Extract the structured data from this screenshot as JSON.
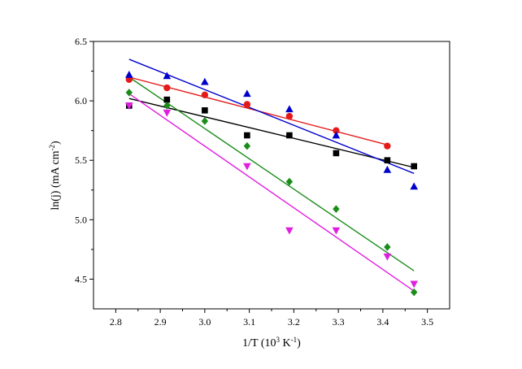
{
  "chart_data": {
    "type": "scatter",
    "xlabel_parts": [
      "1/T (10",
      "3",
      " K",
      "-1",
      ")"
    ],
    "ylabel_parts": [
      "ln(j) (mA cm",
      "-2",
      ")"
    ],
    "xlim": [
      2.75,
      3.55
    ],
    "ylim": [
      4.25,
      6.5
    ],
    "x_ticks": [
      "2.8",
      "2.9",
      "3.0",
      "3.1",
      "3.2",
      "3.3",
      "3.4",
      "3.5"
    ],
    "y_ticks": [
      "4.5",
      "5.0",
      "5.5",
      "6.0",
      "6.5"
    ],
    "series": [
      {
        "marker": "square",
        "color": "#000000",
        "x": [
          2.83,
          2.915,
          3.0,
          3.095,
          3.19,
          3.295,
          3.41,
          3.47
        ],
        "y": [
          5.96,
          6.01,
          5.92,
          5.71,
          5.71,
          5.56,
          5.5,
          5.45
        ],
        "fit": [
          [
            2.83,
            6.02
          ],
          [
            3.47,
            5.44
          ]
        ]
      },
      {
        "marker": "circle",
        "color": "#e41a1a",
        "x": [
          2.83,
          2.915,
          3.0,
          3.095,
          3.19,
          3.295,
          3.41
        ],
        "y": [
          6.18,
          6.11,
          6.05,
          5.97,
          5.87,
          5.75,
          5.62
        ],
        "fit": [
          [
            2.83,
            6.2
          ],
          [
            3.41,
            5.63
          ]
        ]
      },
      {
        "marker": "triangle-up",
        "color": "#0000cc",
        "x": [
          2.83,
          2.915,
          3.0,
          3.095,
          3.19,
          3.295,
          3.41,
          3.47
        ],
        "y": [
          6.22,
          6.21,
          6.16,
          6.06,
          5.93,
          5.71,
          5.42,
          5.28
        ],
        "fit": [
          [
            2.83,
            6.35
          ],
          [
            3.47,
            5.39
          ]
        ]
      },
      {
        "marker": "diamond",
        "color": "#1a8c1a",
        "x": [
          2.83,
          2.915,
          3.0,
          3.095,
          3.19,
          3.295,
          3.41,
          3.47
        ],
        "y": [
          6.07,
          5.96,
          5.83,
          5.62,
          5.32,
          5.09,
          4.77,
          4.39
        ],
        "fit": [
          [
            2.83,
            6.2
          ],
          [
            3.47,
            4.57
          ]
        ]
      },
      {
        "marker": "triangle-down",
        "color": "#e01ee0",
        "x": [
          2.83,
          2.915,
          3.095,
          3.19,
          3.295,
          3.41,
          3.47
        ],
        "y": [
          5.96,
          5.9,
          5.45,
          4.91,
          4.91,
          4.69,
          4.46
        ],
        "fit": [
          [
            2.83,
            6.06
          ],
          [
            3.47,
            4.4
          ]
        ]
      }
    ]
  }
}
